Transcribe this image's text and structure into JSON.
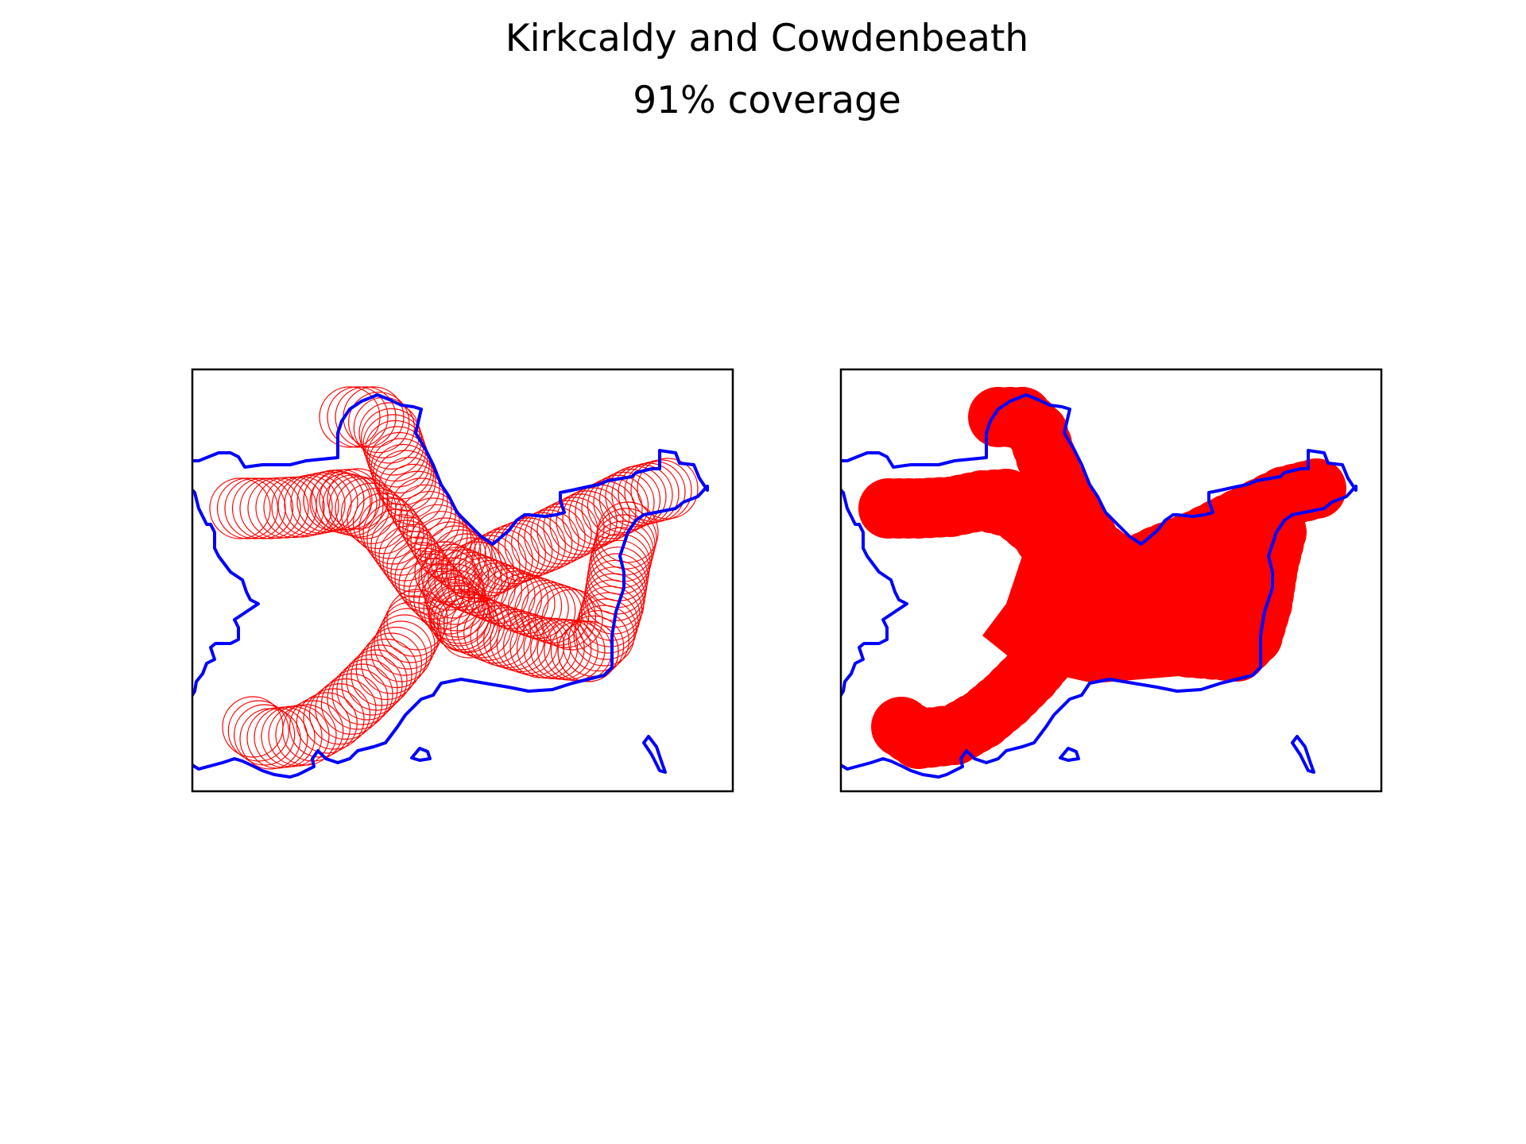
{
  "figure": {
    "title": "Kirkcaldy and Cowdenbeath",
    "subtitle": "91% coverage"
  },
  "colors": {
    "boundary": "#0000ff",
    "coverage": "#ff0000",
    "frame": "#000000",
    "background": "#ffffff"
  },
  "panels": [
    {
      "id": "left",
      "style": "outlined-circles"
    },
    {
      "id": "right",
      "style": "filled-coverage"
    }
  ]
}
